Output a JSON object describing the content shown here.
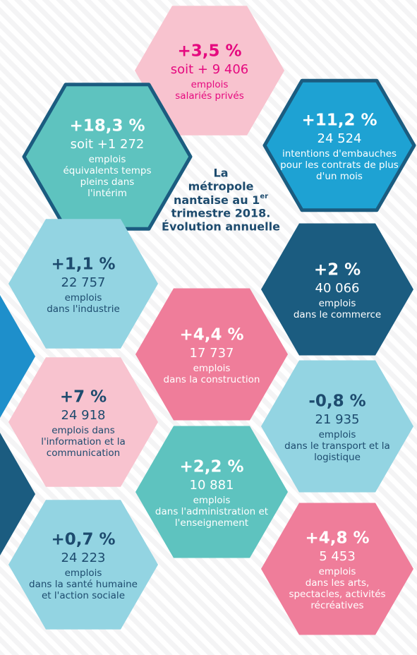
{
  "title_lines": [
    "La",
    "métropole",
    "nantaise au 1",
    "trimestre 2018.",
    "Évolution annuelle"
  ],
  "title_sup": "er",
  "hexagons": [
    {
      "headline": "+3,5 %",
      "lines": [
        "soit + 9 406",
        "emplois",
        "salariés privés"
      ]
    },
    {
      "headline": "+18,3 %",
      "lines": [
        "soit +1 272",
        "emplois",
        "équivalents temps",
        "pleins dans",
        "l'intérim"
      ]
    },
    {
      "headline": "+11,2 %",
      "lines": [
        "24 524",
        "intentions d'embauches",
        "pour les contrats de plus",
        "d'un mois"
      ]
    },
    {
      "headline": "+1,1 %",
      "lines": [
        "22 757",
        "emplois",
        "dans l'industrie"
      ]
    },
    {
      "headline": "+2 %",
      "lines": [
        "40 066",
        "emplois",
        "dans le commerce"
      ]
    },
    {
      "headline": "+4,4 %",
      "lines": [
        "17 737",
        "emplois",
        "dans la construction"
      ]
    },
    {
      "headline": "+7 %",
      "lines": [
        "24 918",
        "emplois dans",
        "l'information et la",
        "communication"
      ]
    },
    {
      "headline": "-0,8 %",
      "lines": [
        "21 935",
        "emplois",
        "dans le transport et la",
        "logistique"
      ]
    },
    {
      "headline": "+2,2 %",
      "lines": [
        "10 881",
        "emplois",
        "dans l'administration et",
        "l'enseignement"
      ]
    },
    {
      "headline": "+0,7 %",
      "lines": [
        "24 223",
        "emplois",
        "dans la santé humaine",
        "et l'action sociale"
      ]
    },
    {
      "headline": "+4,8 %",
      "lines": [
        "5 453",
        "emplois",
        "dans les arts,",
        "spectacles, activités",
        "récréatives"
      ]
    }
  ]
}
